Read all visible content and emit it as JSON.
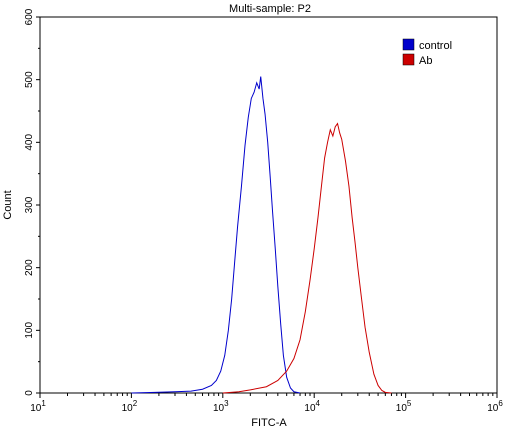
{
  "chart_data": {
    "type": "line",
    "title": "Multi-sample: P2",
    "xlabel": "FITC-A",
    "ylabel": "Count",
    "x_scale": "log",
    "xlim": [
      10,
      1000000
    ],
    "ylim": [
      0,
      600
    ],
    "x_ticks": [
      {
        "value": 10,
        "base": "10",
        "exp": "1"
      },
      {
        "value": 100,
        "base": "10",
        "exp": "2"
      },
      {
        "value": 1000,
        "base": "10",
        "exp": "3"
      },
      {
        "value": 10000,
        "base": "10",
        "exp": "4"
      },
      {
        "value": 100000,
        "base": "10",
        "exp": "5"
      },
      {
        "value": 1000000,
        "base": "10",
        "exp": "6"
      }
    ],
    "y_ticks": [
      0,
      100,
      200,
      300,
      400,
      500,
      600
    ],
    "grid": false,
    "legend_position": "top-right",
    "series": [
      {
        "name": "control",
        "color": "#0000cc",
        "points": [
          [
            100,
            0
          ],
          [
            180,
            1
          ],
          [
            300,
            2
          ],
          [
            450,
            3
          ],
          [
            600,
            6
          ],
          [
            750,
            12
          ],
          [
            850,
            20
          ],
          [
            950,
            35
          ],
          [
            1050,
            60
          ],
          [
            1150,
            100
          ],
          [
            1250,
            150
          ],
          [
            1350,
            210
          ],
          [
            1450,
            265
          ],
          [
            1600,
            330
          ],
          [
            1750,
            395
          ],
          [
            1900,
            440
          ],
          [
            2050,
            470
          ],
          [
            2200,
            480
          ],
          [
            2350,
            495
          ],
          [
            2500,
            485
          ],
          [
            2600,
            505
          ],
          [
            2750,
            470
          ],
          [
            2900,
            445
          ],
          [
            3100,
            400
          ],
          [
            3300,
            345
          ],
          [
            3500,
            290
          ],
          [
            3750,
            230
          ],
          [
            4000,
            170
          ],
          [
            4300,
            110
          ],
          [
            4600,
            60
          ],
          [
            5000,
            25
          ],
          [
            5500,
            8
          ],
          [
            6000,
            2
          ],
          [
            7000,
            0
          ]
        ]
      },
      {
        "name": "Ab",
        "color": "#cc0000",
        "points": [
          [
            1000,
            0
          ],
          [
            1500,
            2
          ],
          [
            2000,
            5
          ],
          [
            3000,
            10
          ],
          [
            4000,
            20
          ],
          [
            5000,
            35
          ],
          [
            6000,
            55
          ],
          [
            7000,
            85
          ],
          [
            8000,
            130
          ],
          [
            9000,
            180
          ],
          [
            10000,
            230
          ],
          [
            11000,
            280
          ],
          [
            12000,
            330
          ],
          [
            13000,
            375
          ],
          [
            14000,
            400
          ],
          [
            15000,
            420
          ],
          [
            16000,
            410
          ],
          [
            17000,
            425
          ],
          [
            18000,
            430
          ],
          [
            19000,
            415
          ],
          [
            20000,
            405
          ],
          [
            22000,
            370
          ],
          [
            24000,
            330
          ],
          [
            26000,
            280
          ],
          [
            28000,
            240
          ],
          [
            30000,
            200
          ],
          [
            33000,
            150
          ],
          [
            36000,
            105
          ],
          [
            40000,
            65
          ],
          [
            45000,
            30
          ],
          [
            50000,
            12
          ],
          [
            55000,
            4
          ],
          [
            60000,
            1
          ],
          [
            70000,
            0
          ]
        ]
      }
    ]
  }
}
